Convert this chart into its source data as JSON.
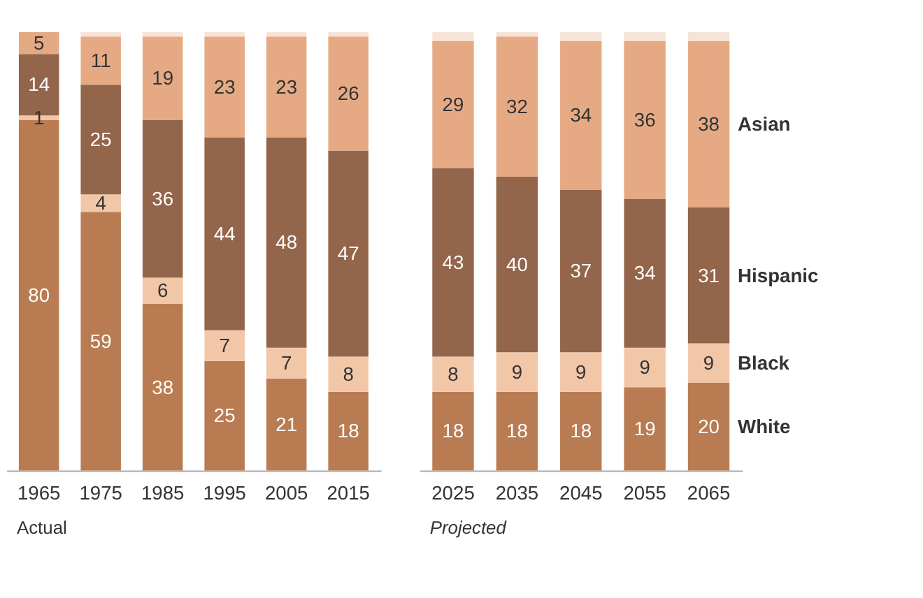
{
  "chart_data": [
    {
      "type": "bar",
      "stacked": true,
      "categories": [
        "1965",
        "1975",
        "1985",
        "1995",
        "2005",
        "2015"
      ],
      "ylim": [
        0,
        100
      ],
      "tick_labels": "x",
      "grid": false,
      "legend": false,
      "annotations": [
        "Actual"
      ],
      "series": [
        {
          "color": "#b97c52",
          "values": [
            80,
            59,
            38,
            25,
            21,
            18
          ],
          "value_labels": [
            "80",
            "59",
            "38",
            "25",
            "21",
            "18"
          ]
        },
        {
          "color": "#f2c7a8",
          "values": [
            1,
            4,
            6,
            7,
            7,
            8
          ],
          "value_labels": [
            "1",
            "4",
            "6",
            "7",
            "7",
            "8"
          ]
        },
        {
          "color": "#93654a",
          "values": [
            14,
            25,
            36,
            44,
            48,
            47
          ],
          "value_labels": [
            "14",
            "25",
            "36",
            "44",
            "48",
            "47"
          ]
        },
        {
          "color": "#e5aa84",
          "values": [
            5,
            11,
            19,
            23,
            23,
            26
          ],
          "value_labels": [
            "5",
            "11",
            "19",
            "23",
            "23",
            "26"
          ]
        },
        {
          "color": "#f7e3d8",
          "values": [
            0,
            1,
            1,
            1,
            1,
            1
          ],
          "value_labels": [
            null,
            null,
            null,
            null,
            null,
            null
          ]
        }
      ]
    },
    {
      "type": "bar",
      "stacked": true,
      "categories": [
        "2025",
        "2035",
        "2045",
        "2055",
        "2065"
      ],
      "ylim": [
        0,
        100
      ],
      "tick_labels": "x",
      "grid": false,
      "legend": false,
      "annotations": [
        "Projected"
      ],
      "series": [
        {
          "name": "White",
          "color": "#b97c52",
          "values": [
            18,
            18,
            18,
            19,
            20
          ],
          "value_labels": [
            "18",
            "18",
            "18",
            "19",
            "20"
          ]
        },
        {
          "name": "Black",
          "color": "#f2c7a8",
          "values": [
            8,
            9,
            9,
            9,
            9
          ],
          "value_labels": [
            "8",
            "9",
            "9",
            "9",
            "9"
          ]
        },
        {
          "name": "Hispanic",
          "color": "#93654a",
          "values": [
            43,
            40,
            37,
            34,
            31
          ],
          "value_labels": [
            "43",
            "40",
            "37",
            "34",
            "31"
          ]
        },
        {
          "name": "Asian",
          "color": "#e5aa84",
          "values": [
            29,
            32,
            34,
            36,
            38
          ],
          "value_labels": [
            "29",
            "32",
            "34",
            "36",
            "38"
          ]
        },
        {
          "color": "#f7e3d8",
          "values": [
            2,
            1,
            2,
            2,
            2
          ],
          "value_labels": [
            null,
            null,
            null,
            null,
            null
          ]
        }
      ]
    }
  ]
}
